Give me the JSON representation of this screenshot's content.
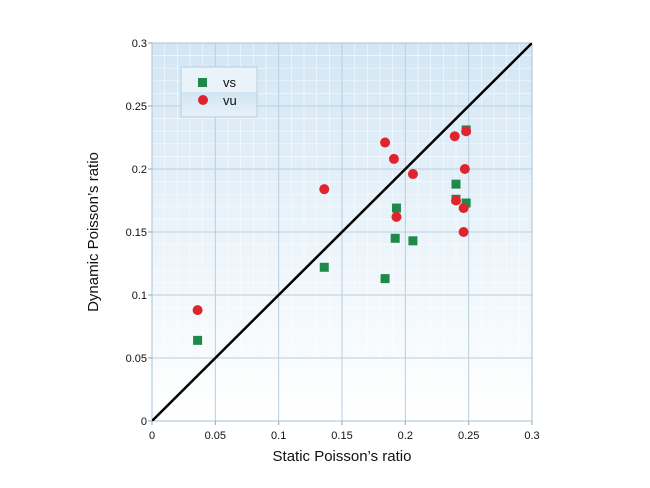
{
  "chart_data": {
    "type": "scatter",
    "xlabel": "Static Poisson’s ratio",
    "ylabel": "Dynamic Poisson’s ratio",
    "xlim": [
      0,
      0.3
    ],
    "ylim": [
      0,
      0.3
    ],
    "x_ticks": [
      "0",
      "0.05",
      "0.1",
      "0.15",
      "0.2",
      "0.25",
      "0.3"
    ],
    "y_ticks": [
      "0",
      "0.05",
      "0.1",
      "0.15",
      "0.2",
      "0.25",
      "0.3"
    ],
    "grid": true,
    "legend_position": "top-left",
    "reference_line": {
      "from": [
        0,
        0
      ],
      "to": [
        0.3,
        0.3
      ],
      "color": "#000000"
    },
    "series": [
      {
        "name": "vs",
        "marker": "square",
        "color": "#1e8a4a",
        "points": [
          [
            0.036,
            0.064
          ],
          [
            0.136,
            0.122
          ],
          [
            0.184,
            0.113
          ],
          [
            0.192,
            0.145
          ],
          [
            0.193,
            0.169
          ],
          [
            0.206,
            0.143
          ],
          [
            0.24,
            0.188
          ],
          [
            0.24,
            0.176
          ],
          [
            0.248,
            0.173
          ],
          [
            0.248,
            0.231
          ]
        ]
      },
      {
        "name": "vu",
        "marker": "circle",
        "color": "#e0242e",
        "points": [
          [
            0.036,
            0.088
          ],
          [
            0.136,
            0.184
          ],
          [
            0.184,
            0.221
          ],
          [
            0.191,
            0.208
          ],
          [
            0.193,
            0.162
          ],
          [
            0.206,
            0.196
          ],
          [
            0.239,
            0.226
          ],
          [
            0.24,
            0.175
          ],
          [
            0.246,
            0.169
          ],
          [
            0.246,
            0.15
          ],
          [
            0.247,
            0.2
          ],
          [
            0.248,
            0.23
          ]
        ]
      }
    ]
  }
}
